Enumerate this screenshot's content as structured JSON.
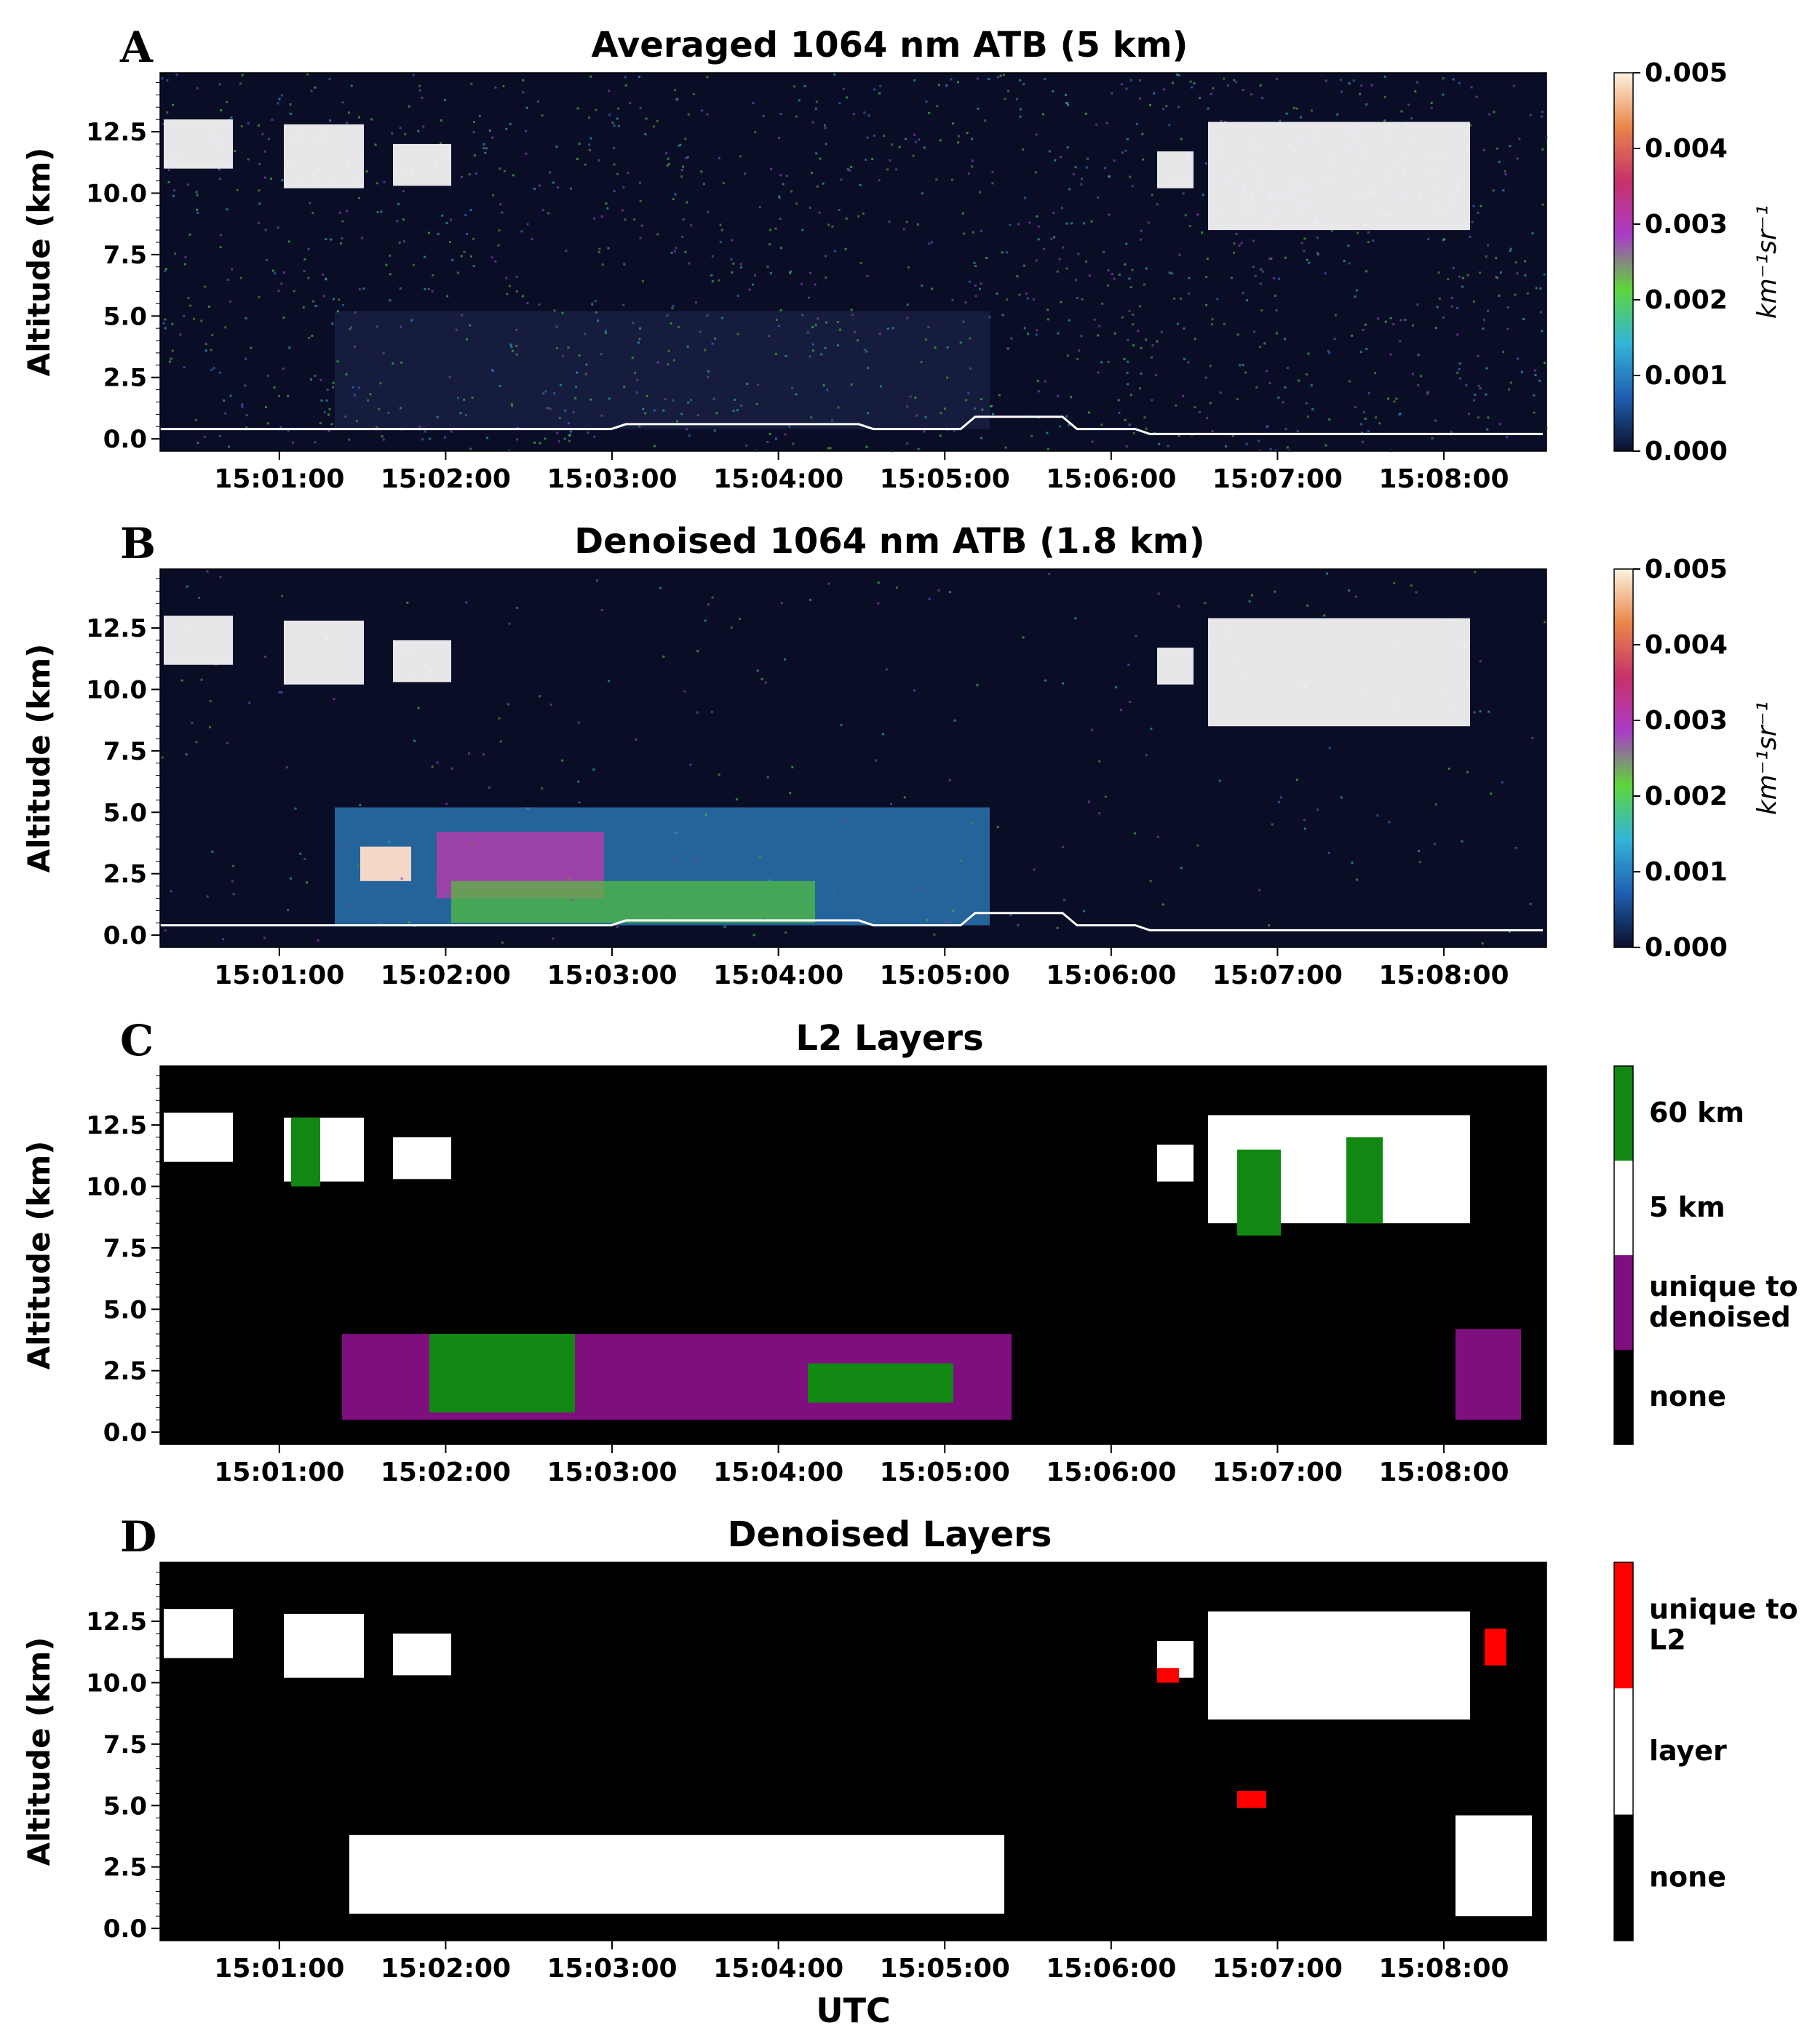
{
  "chart_data": [
    {
      "type": "heatmap",
      "panel_letter": "A",
      "title": "Averaged 1064 nm ATB (5 km)",
      "ylabel": "Altitude (km)",
      "xlabel": "",
      "x_ticks": [
        "15:01:00",
        "15:02:00",
        "15:03:00",
        "15:04:00",
        "15:05:00",
        "15:06:00",
        "15:07:00",
        "15:08:00"
      ],
      "y_ticks": [
        "0.0",
        "2.5",
        "5.0",
        "7.5",
        "10.0",
        "12.5"
      ],
      "y_tick_values": [
        0,
        2.5,
        5,
        7.5,
        10,
        12.5
      ],
      "ylim": [
        -0.5,
        14.9
      ],
      "x_range": [
        "15:00:17",
        "15:08:37"
      ],
      "colorbar": {
        "ticks": [
          "0.000",
          "0.001",
          "0.002",
          "0.003",
          "0.004",
          "0.005"
        ],
        "tick_values": [
          0,
          0.001,
          0.002,
          0.003,
          0.004,
          0.005
        ],
        "label": "km⁻¹sr⁻¹",
        "colors": [
          "#0b0f2a",
          "#1f5fb0",
          "#33b5d9",
          "#5fd53b",
          "#a93cc7",
          "#c8306a",
          "#e9874a",
          "#fdf2e0"
        ]
      }
    },
    {
      "type": "heatmap",
      "panel_letter": "B",
      "title": "Denoised 1064 nm ATB (1.8 km)",
      "ylabel": "Altitude (km)",
      "xlabel": "",
      "x_ticks": [
        "15:01:00",
        "15:02:00",
        "15:03:00",
        "15:04:00",
        "15:05:00",
        "15:06:00",
        "15:07:00",
        "15:08:00"
      ],
      "y_ticks": [
        "0.0",
        "2.5",
        "5.0",
        "7.5",
        "10.0",
        "12.5"
      ],
      "y_tick_values": [
        0,
        2.5,
        5,
        7.5,
        10,
        12.5
      ],
      "ylim": [
        -0.5,
        14.9
      ],
      "x_range": [
        "15:00:17",
        "15:08:37"
      ],
      "colorbar": {
        "ticks": [
          "0.000",
          "0.001",
          "0.002",
          "0.003",
          "0.004",
          "0.005"
        ],
        "tick_values": [
          0,
          0.001,
          0.002,
          0.003,
          0.004,
          0.005
        ],
        "label": "km⁻¹sr⁻¹",
        "colors": [
          "#0b0f2a",
          "#1f5fb0",
          "#33b5d9",
          "#5fd53b",
          "#a93cc7",
          "#c8306a",
          "#e9874a",
          "#fdf2e0"
        ]
      }
    },
    {
      "type": "heatmap",
      "panel_letter": "C",
      "title": "L2 Layers",
      "ylabel": "Altitude (km)",
      "xlabel": "",
      "x_ticks": [
        "15:01:00",
        "15:02:00",
        "15:03:00",
        "15:04:00",
        "15:05:00",
        "15:06:00",
        "15:07:00",
        "15:08:00"
      ],
      "y_ticks": [
        "0.0",
        "2.5",
        "5.0",
        "7.5",
        "10.0",
        "12.5"
      ],
      "y_tick_values": [
        0,
        2.5,
        5,
        7.5,
        10,
        12.5
      ],
      "ylim": [
        -0.5,
        14.9
      ],
      "x_range": [
        "15:00:17",
        "15:08:37"
      ],
      "legend_categories": [
        {
          "label": "60 km",
          "color": "#118811"
        },
        {
          "label": "5 km",
          "color": "#ffffff"
        },
        {
          "label": "unique to denoised",
          "color": "#7f0f7f"
        },
        {
          "label": "none",
          "color": "#000000"
        }
      ]
    },
    {
      "type": "heatmap",
      "panel_letter": "D",
      "title": "Denoised Layers",
      "ylabel": "Altitude (km)",
      "xlabel": "UTC",
      "x_ticks": [
        "15:01:00",
        "15:02:00",
        "15:03:00",
        "15:04:00",
        "15:05:00",
        "15:06:00",
        "15:07:00",
        "15:08:00"
      ],
      "y_ticks": [
        "0.0",
        "2.5",
        "5.0",
        "7.5",
        "10.0",
        "12.5"
      ],
      "y_tick_values": [
        0,
        2.5,
        5,
        7.5,
        10,
        12.5
      ],
      "ylim": [
        -0.5,
        14.9
      ],
      "x_range": [
        "15:00:17",
        "15:08:37"
      ],
      "legend_categories": [
        {
          "label": "unique to L2",
          "color": "#ff0000"
        },
        {
          "label": "layer",
          "color": "#ffffff"
        },
        {
          "label": "none",
          "color": "#000000"
        }
      ]
    }
  ]
}
